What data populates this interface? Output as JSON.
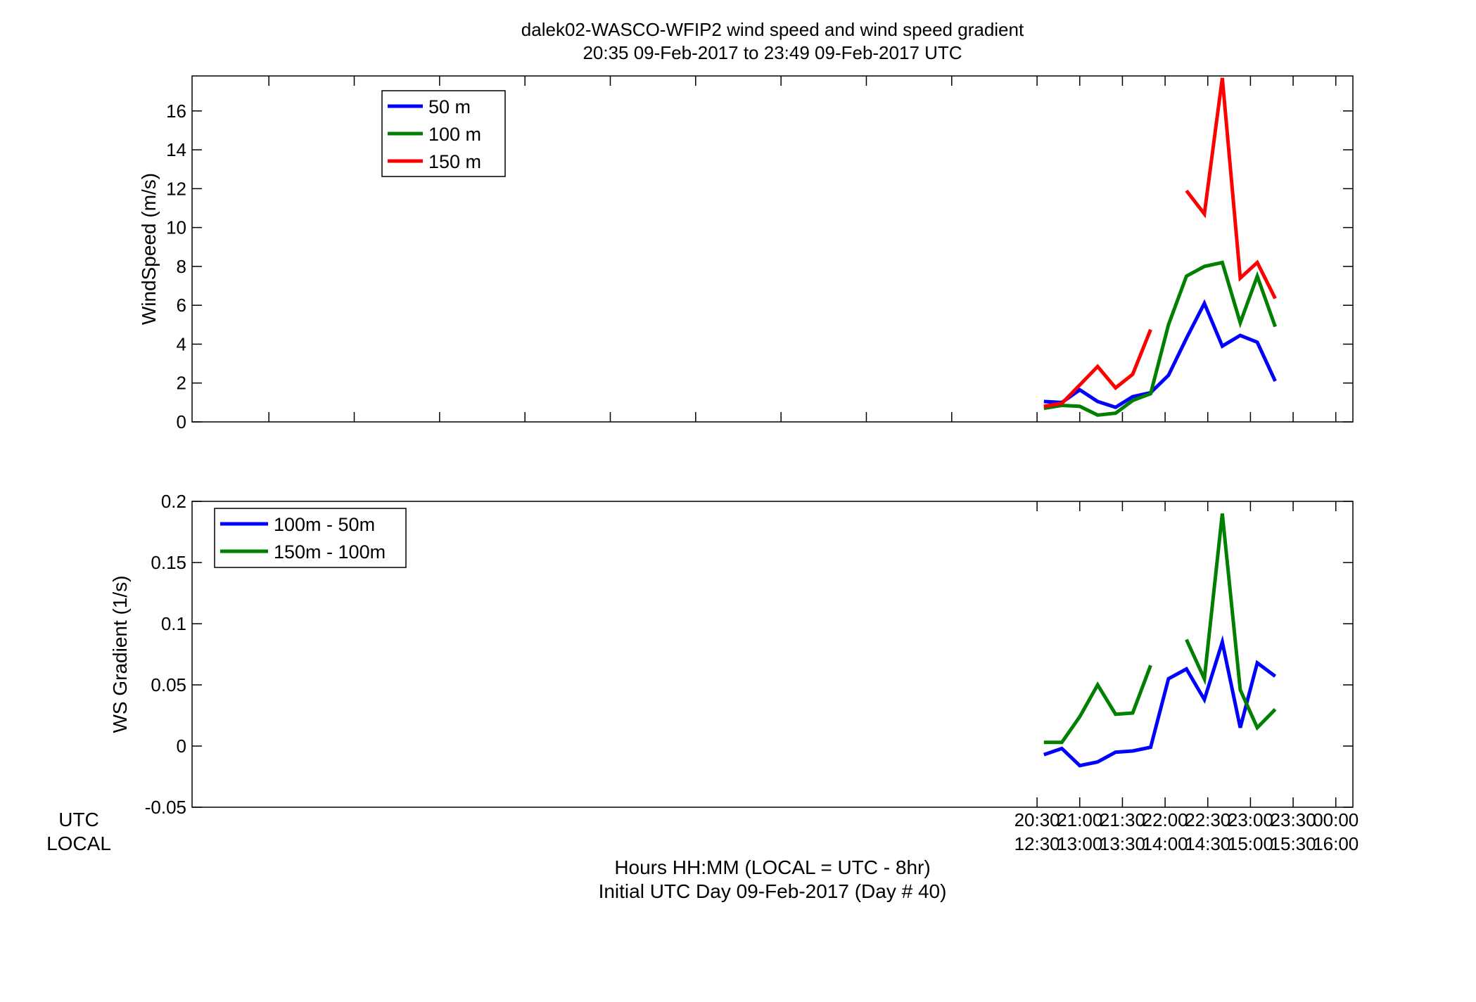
{
  "title": {
    "line1": "dalek02-WASCO-WFIP2  wind speed and wind speed gradient",
    "line2": "20:35 09-Feb-2017 to 23:49 09-Feb-2017  UTC"
  },
  "row_labels": {
    "utc": "UTC",
    "local": "LOCAL"
  },
  "xlabel": {
    "line1": "Hours HH:MM  (LOCAL = UTC - 8hr)",
    "line2": "Initial UTC Day 09-Feb-2017 (Day # 40)"
  },
  "colors": {
    "blue": "#0000ff",
    "green": "#007f00",
    "red": "#ff0000"
  },
  "chart_data": [
    {
      "type": "line",
      "ylabel": "WindSpeed (m/s)",
      "xlim": [
        10.6,
        24.2
      ],
      "ylim": [
        0,
        17.8
      ],
      "yticks": [
        0,
        2,
        4,
        6,
        8,
        10,
        12,
        14,
        16
      ],
      "ytick_labels": [
        "0",
        "2",
        "4",
        "6",
        "8",
        "10",
        "12",
        "14",
        "16"
      ],
      "xticks": [
        11.5,
        12.5,
        13.5,
        14.5,
        15.5,
        16.5,
        17.5,
        18.5,
        19.5,
        20.5,
        21,
        21.5,
        22,
        22.5,
        23,
        23.5,
        24
      ],
      "legend": "top-left",
      "series": [
        {
          "name": "50 m",
          "color": "#0000ff",
          "x": [
            20.58,
            20.79,
            21.0,
            21.21,
            21.42,
            21.62,
            21.83,
            22.04,
            22.25,
            22.46,
            22.67,
            22.88,
            23.08,
            23.29,
            23.5,
            23.71
          ],
          "y": [
            1.05,
            1.0,
            1.65,
            1.05,
            0.75,
            1.3,
            1.5,
            2.4,
            4.3,
            6.1,
            3.9,
            4.45,
            4.1,
            2.1,
            null,
            null
          ]
        },
        {
          "name": "100 m",
          "color": "#007f00",
          "x": [
            20.58,
            20.79,
            21.0,
            21.21,
            21.42,
            21.62,
            21.83,
            22.04,
            22.25,
            22.46,
            22.67,
            22.88,
            23.08,
            23.29
          ],
          "y": [
            0.7,
            0.85,
            0.8,
            0.35,
            0.45,
            1.1,
            1.45,
            5.0,
            7.5,
            8.0,
            8.2,
            5.1,
            7.5,
            4.9
          ]
        },
        {
          "name": "150 m",
          "color": "#ff0000",
          "x": [
            20.58,
            20.79,
            21.0,
            21.21,
            21.42,
            21.62,
            21.83,
            22.04,
            22.25,
            22.46,
            22.67,
            22.88,
            23.08,
            23.29,
            23.5
          ],
          "y": [
            0.8,
            0.95,
            1.9,
            2.85,
            1.75,
            2.45,
            4.75,
            null,
            11.9,
            10.7,
            17.7,
            7.4,
            8.2,
            6.35,
            null
          ]
        }
      ]
    },
    {
      "type": "line",
      "ylabel": "WS Gradient (1/s)",
      "xlim": [
        10.6,
        24.2
      ],
      "ylim": [
        -0.05,
        0.2
      ],
      "yticks": [
        -0.05,
        0,
        0.05,
        0.1,
        0.15,
        0.2
      ],
      "ytick_labels": [
        "-0.05",
        "0",
        "0.05",
        "0.1",
        "0.15",
        "0.2"
      ],
      "xticks": [
        20.5,
        21,
        21.5,
        22,
        22.5,
        23,
        23.5,
        24
      ],
      "xtick_labels_utc": [
        "20:30",
        "21:00",
        "21:30",
        "22:00",
        "22:30",
        "23:00",
        "23:30",
        "00:00"
      ],
      "xtick_labels_local": [
        "12:30",
        "13:00",
        "13:30",
        "14:00",
        "14:30",
        "15:00",
        "15:30",
        "16:00"
      ],
      "legend": "top-left",
      "series": [
        {
          "name": "100m - 50m",
          "color": "#0000ff",
          "x": [
            20.58,
            20.79,
            21.0,
            21.21,
            21.42,
            21.62,
            21.83,
            22.04,
            22.25,
            22.46,
            22.67,
            22.88,
            23.08,
            23.29
          ],
          "y": [
            -0.007,
            -0.002,
            -0.016,
            -0.013,
            -0.005,
            -0.004,
            -0.001,
            0.055,
            0.063,
            0.038,
            0.085,
            0.015,
            0.068,
            0.057
          ]
        },
        {
          "name": "150m - 100m",
          "color": "#007f00",
          "x": [
            20.58,
            20.79,
            21.0,
            21.21,
            21.42,
            21.62,
            21.83,
            22.04,
            22.25,
            22.46,
            22.67,
            22.88,
            23.08,
            23.29
          ],
          "y": [
            0.003,
            0.003,
            0.024,
            0.05,
            0.026,
            0.027,
            0.066,
            null,
            0.087,
            0.055,
            0.19,
            0.046,
            0.015,
            0.03
          ]
        }
      ]
    }
  ]
}
